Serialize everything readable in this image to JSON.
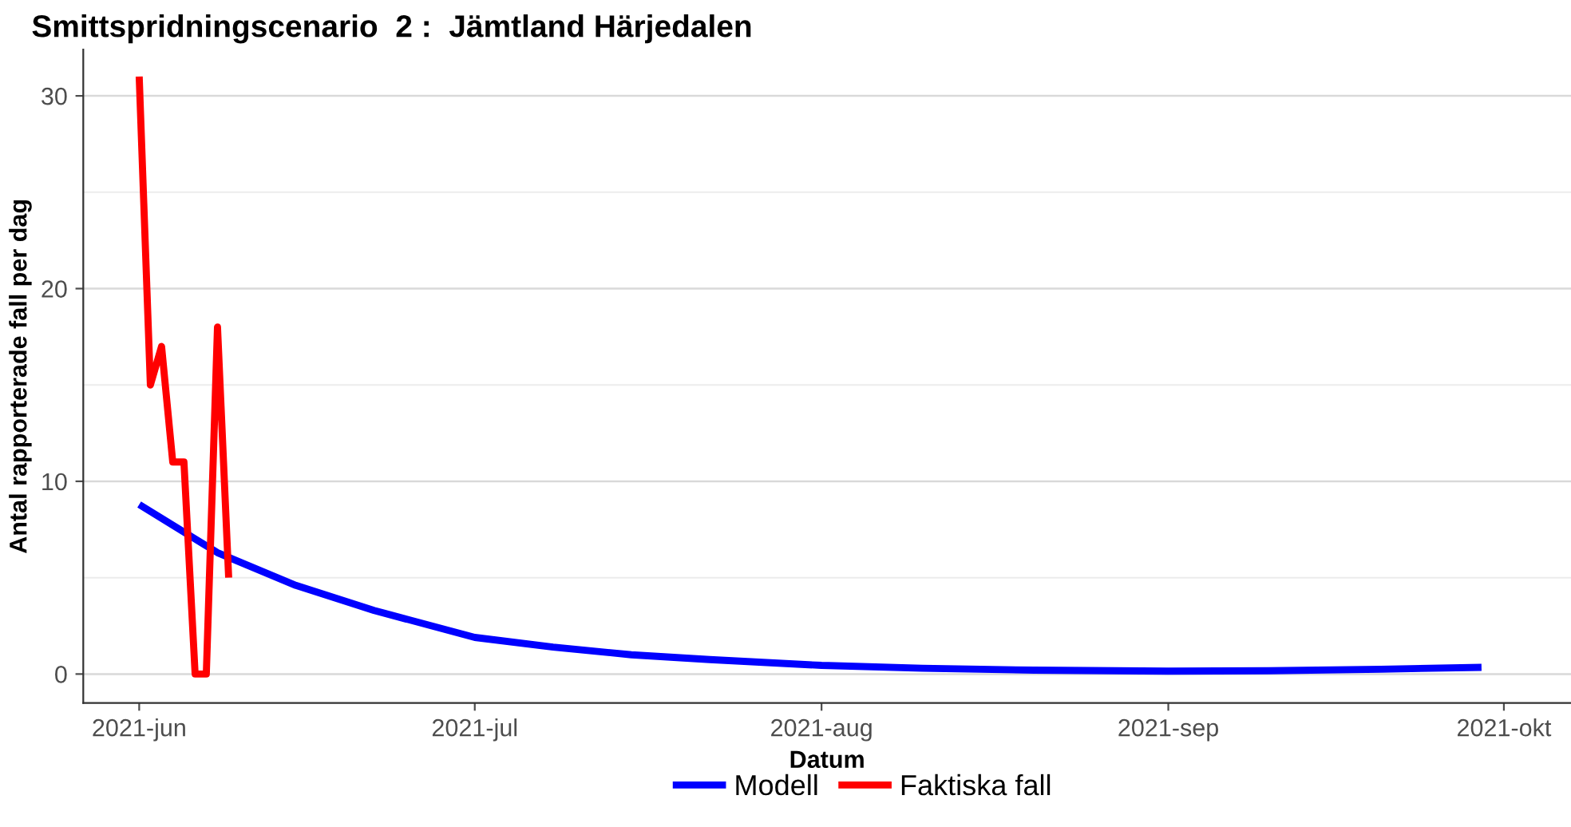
{
  "chart_data": {
    "type": "line",
    "title": "Smittspridningscenario  2 :  Jämtland Härjedalen",
    "xlabel": "Datum",
    "ylabel": "Antal rapporterade fall per dag",
    "series": [
      {
        "name": "Modell",
        "color": "#0000ff",
        "x": [
          "2021-06-01",
          "2021-06-08",
          "2021-06-15",
          "2021-06-22",
          "2021-07-01",
          "2021-07-08",
          "2021-07-15",
          "2021-07-22",
          "2021-08-01",
          "2021-08-10",
          "2021-08-20",
          "2021-09-01",
          "2021-09-10",
          "2021-09-20",
          "2021-09-29"
        ],
        "values": [
          8.8,
          6.3,
          4.6,
          3.3,
          1.9,
          1.4,
          1.0,
          0.75,
          0.45,
          0.3,
          0.2,
          0.15,
          0.17,
          0.25,
          0.35
        ]
      },
      {
        "name": "Faktiska fall",
        "color": "#ff0000",
        "x": [
          "2021-06-01",
          "2021-06-02",
          "2021-06-03",
          "2021-06-04",
          "2021-06-05",
          "2021-06-06",
          "2021-06-07",
          "2021-06-08",
          "2021-06-09"
        ],
        "values": [
          31,
          15,
          17,
          11,
          11,
          0,
          0,
          18,
          5
        ]
      }
    ],
    "xlim": [
      "2021-05-27",
      "2021-10-07"
    ],
    "ylim": [
      -1.5,
      32.4
    ],
    "xticks": [
      {
        "value": "2021-06-01",
        "label": "2021-jun"
      },
      {
        "value": "2021-07-01",
        "label": "2021-jul"
      },
      {
        "value": "2021-08-01",
        "label": "2021-aug"
      },
      {
        "value": "2021-09-01",
        "label": "2021-sep"
      },
      {
        "value": "2021-10-01",
        "label": "2021-okt"
      }
    ],
    "yticks": [
      0,
      10,
      20,
      30,
      {
        "value": 5,
        "label": null
      },
      {
        "value": 15,
        "label": null
      },
      {
        "value": 25,
        "label": null
      }
    ],
    "grid": "y",
    "legend": "bottom",
    "marker": "none",
    "line_style": "solid"
  }
}
